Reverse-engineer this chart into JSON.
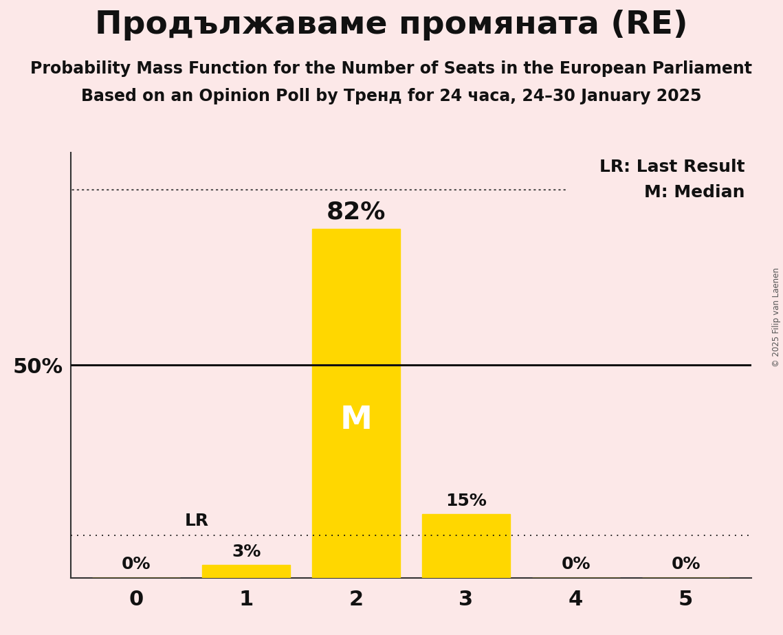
{
  "title": "Продължаваме промяната (RE)",
  "subtitle1": "Probability Mass Function for the Number of Seats in the European Parliament",
  "subtitle2": "Based on an Opinion Poll by Тренд for 24 часа, 24–30 January 2025",
  "copyright": "© 2025 Filip van Laenen",
  "categories": [
    0,
    1,
    2,
    3,
    4,
    5
  ],
  "values": [
    0,
    3,
    82,
    15,
    0,
    0
  ],
  "bar_color": "#FFD700",
  "background_color": "#fce8e8",
  "median_seat": 2,
  "last_result_seat": 1,
  "last_result_value": 10,
  "legend_lr": "LR: Last Result",
  "legend_m": "M: Median",
  "title_fontsize": 34,
  "subtitle_fontsize": 17,
  "label_fontsize": 18,
  "tick_fontsize": 22,
  "annot_fontsize": 18,
  "big_annot_fontsize": 26,
  "median_label_fontsize": 34,
  "lr_label_fontsize": 18,
  "ylim": [
    0,
    100
  ],
  "xlim": [
    -0.6,
    5.6
  ]
}
